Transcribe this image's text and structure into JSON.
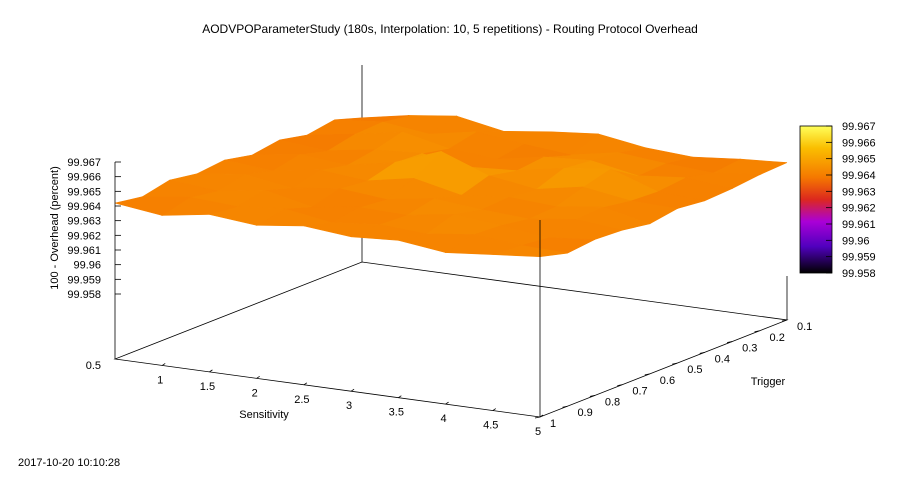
{
  "title": "AODVPOParameterStudy (180s, Interpolation: 10, 5 repetitions) - Routing Protocol Overhead",
  "timestamp": "2017-10-20 10:10:28",
  "chart_data": {
    "type": "surface",
    "title": "AODVPOParameterStudy (180s, Interpolation: 10, 5 repetitions) - Routing Protocol Overhead",
    "xlabel": "Sensitivity",
    "ylabel": "Trigger",
    "zlabel": "100 - Overhead (percent)",
    "xlim": [
      0.5,
      5
    ],
    "ylim": [
      0.1,
      1
    ],
    "zlim": [
      99.958,
      99.967
    ],
    "x_ticks": [
      "0.5",
      "1",
      "1.5",
      "2",
      "2.5",
      "3",
      "3.5",
      "4",
      "4.5",
      "5"
    ],
    "y_ticks": [
      "0.1",
      "0.2",
      "0.3",
      "0.4",
      "0.5",
      "0.6",
      "0.7",
      "0.8",
      "0.9",
      "1"
    ],
    "z_ticks": [
      "99.958",
      "99.959",
      "99.96",
      "99.961",
      "99.962",
      "99.963",
      "99.964",
      "99.965",
      "99.966",
      "99.967"
    ],
    "colorbar": {
      "range": [
        99.958,
        99.967
      ],
      "ticks": [
        "99.958",
        "99.959",
        "99.96",
        "99.961",
        "99.962",
        "99.963",
        "99.964",
        "99.965",
        "99.966",
        "99.967"
      ],
      "colors": [
        "#000000",
        "#5b00c8",
        "#b000d8",
        "#e0301c",
        "#f47a00",
        "#f8c000",
        "#ffff66"
      ]
    },
    "x": [
      0.5,
      1,
      1.5,
      2,
      2.5,
      3,
      3.5,
      4,
      4.5,
      5
    ],
    "y": [
      0.1,
      0.2,
      0.3,
      0.4,
      0.5,
      0.6,
      0.7,
      0.8,
      0.9,
      1
    ],
    "z": [
      [
        99.9634,
        99.964,
        99.9644,
        99.9638,
        99.9642,
        99.9645,
        99.964,
        99.9638,
        99.9641,
        99.9643
      ],
      [
        99.964,
        99.9643,
        99.9639,
        99.9645,
        99.9641,
        99.9638,
        99.9644,
        99.9641,
        99.9639,
        99.9642
      ],
      [
        99.9637,
        99.9642,
        99.9648,
        99.9641,
        99.9638,
        99.9644,
        99.9646,
        99.964,
        99.9643,
        99.964
      ],
      [
        99.9641,
        99.9638,
        99.9643,
        99.9645,
        99.964,
        99.9642,
        99.9648,
        99.9652,
        99.9641,
        99.9639
      ],
      [
        99.9638,
        99.9643,
        99.964,
        99.9646,
        99.9658,
        99.9646,
        99.9641,
        99.9647,
        99.9642,
        99.9641
      ],
      [
        99.9642,
        99.9639,
        99.9644,
        99.9641,
        99.9647,
        99.964,
        99.9643,
        99.9641,
        99.9645,
        99.9638
      ],
      [
        99.964,
        99.9644,
        99.9639,
        99.9643,
        99.964,
        99.9645,
        99.9642,
        99.964,
        99.9644,
        99.9641
      ],
      [
        99.9643,
        99.964,
        99.9645,
        99.9638,
        99.9642,
        99.9641,
        99.9646,
        99.9643,
        99.9639,
        99.9642
      ],
      [
        99.9639,
        99.9643,
        99.9641,
        99.9644,
        99.9639,
        99.9642,
        99.964,
        99.9644,
        99.9641,
        99.964
      ],
      [
        99.9642,
        99.9638,
        99.9643,
        99.964,
        99.9644,
        99.9641,
        99.9643,
        99.9639,
        99.9642,
        99.9645
      ]
    ]
  }
}
